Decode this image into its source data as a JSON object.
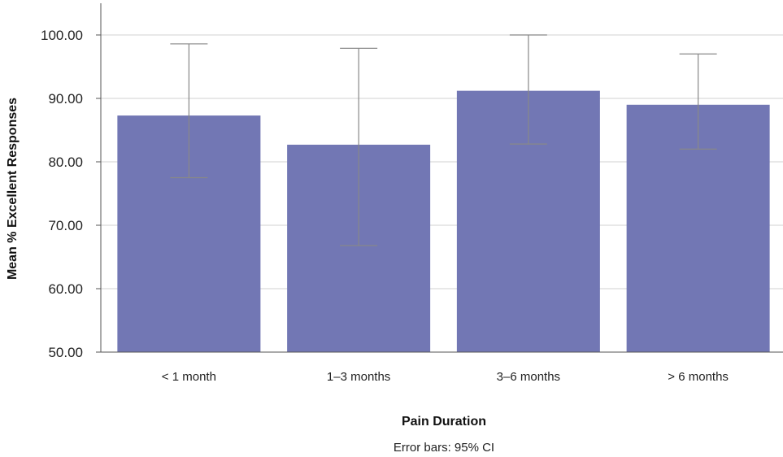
{
  "chart_data": {
    "type": "bar",
    "categories": [
      "< 1 month",
      "1–3 months",
      "3–6 months",
      "> 6 months"
    ],
    "values": [
      87.3,
      82.7,
      91.2,
      89.0
    ],
    "error_bars": {
      "lower": [
        77.5,
        66.8,
        82.8,
        82.0
      ],
      "upper": [
        98.6,
        97.9,
        100.0,
        97.0
      ]
    },
    "title": "",
    "xlabel": "Pain Duration",
    "ylabel": "Mean % Excellent Responses",
    "ylim": [
      50,
      100
    ],
    "yticks": [
      "100.00",
      "90.00",
      "80.00",
      "70.00",
      "60.00",
      "50.00"
    ],
    "ytick_values": [
      100,
      90,
      80,
      70,
      60,
      50
    ],
    "note": "Error bars: 95% CI",
    "grid": true,
    "colors": {
      "bar": "#7277b4",
      "error_bar": "#888888",
      "grid": "#d0d0d0",
      "axis": "#555555"
    }
  }
}
